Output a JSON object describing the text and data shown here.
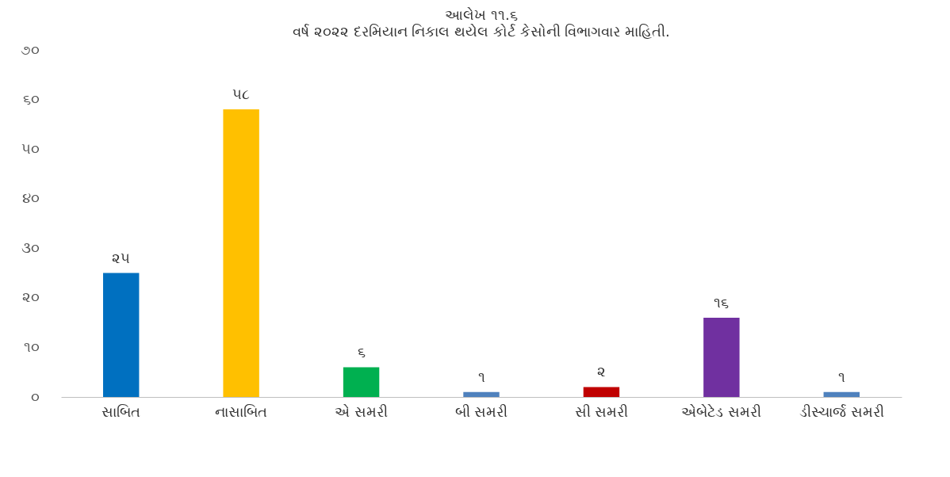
{
  "chart_data": {
    "type": "bar",
    "title": "આલેખ ૧૧.૬",
    "subtitle": "વર્ષ ૨૦૨૨ દરમિયાન નિકાલ થયેલ કોર્ટ કેસોની વિભાગવાર માહિતી.",
    "categories": [
      "સાબિત",
      "નાસાબિત",
      "એ સમરી",
      "બી સમરી",
      "સી સમરી",
      "એબેટેડ સમરી",
      "ડીસ્ચાર્જ સમરી"
    ],
    "values": [
      25,
      58,
      6,
      1,
      2,
      16,
      1
    ],
    "colors": [
      "#0070c0",
      "#ffc000",
      "#00b050",
      "#4f81bd",
      "#c00000",
      "#7030a0",
      "#4f81bd"
    ],
    "value_labels": [
      "૨૫",
      "૫૮",
      "૬",
      "૧",
      "૨",
      "૧૬",
      "૧"
    ],
    "ylim": [
      0,
      70
    ],
    "yticks": [
      {
        "value": 0,
        "label": "૦"
      },
      {
        "value": 10,
        "label": "૧૦"
      },
      {
        "value": 20,
        "label": "૨૦"
      },
      {
        "value": 30,
        "label": "૩૦"
      },
      {
        "value": 40,
        "label": "૪૦"
      },
      {
        "value": 50,
        "label": "૫૦"
      },
      {
        "value": 60,
        "label": "૬૦"
      },
      {
        "value": 70,
        "label": "૭૦"
      }
    ],
    "grid": false
  }
}
